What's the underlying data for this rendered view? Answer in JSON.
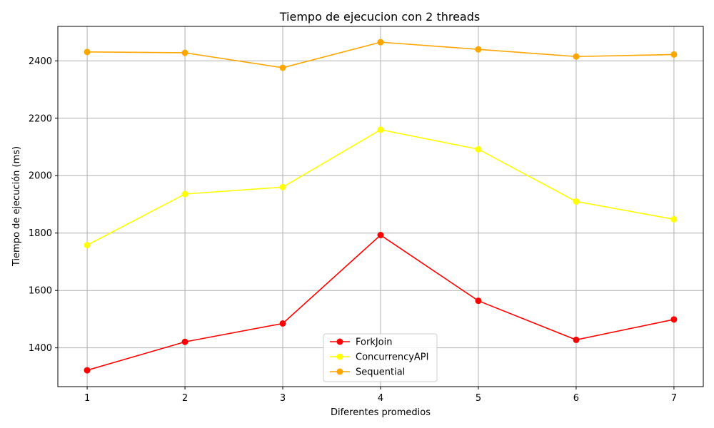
{
  "chart_data": {
    "type": "line",
    "title": "Tiempo de ejecucion con 2 threads",
    "xlabel": "Diferentes promedios",
    "ylabel": "Tiempo de ejecución (ms)",
    "x": [
      1,
      2,
      3,
      4,
      5,
      6,
      7
    ],
    "xlim": [
      0.7,
      7.3
    ],
    "ylim": [
      1265,
      2520
    ],
    "xticks": [
      "1",
      "2",
      "3",
      "4",
      "5",
      "6",
      "7"
    ],
    "yticks": [
      1400,
      1600,
      1800,
      2000,
      2200,
      2400
    ],
    "grid": true,
    "legend_position": "bottom-center",
    "series": [
      {
        "name": "ForkJoin",
        "color": "#ff0000",
        "marker": "circle",
        "values": [
          1322,
          1421,
          1485,
          1793,
          1564,
          1428,
          1499
        ]
      },
      {
        "name": "ConcurrencyAPI",
        "color": "#ffff00",
        "marker": "circle",
        "values": [
          1758,
          1936,
          1960,
          2160,
          2092,
          1910,
          1848
        ]
      },
      {
        "name": "Sequential",
        "color": "#ffa500",
        "marker": "circle",
        "values": [
          2431,
          2428,
          2376,
          2465,
          2440,
          2415,
          2422
        ]
      }
    ]
  }
}
